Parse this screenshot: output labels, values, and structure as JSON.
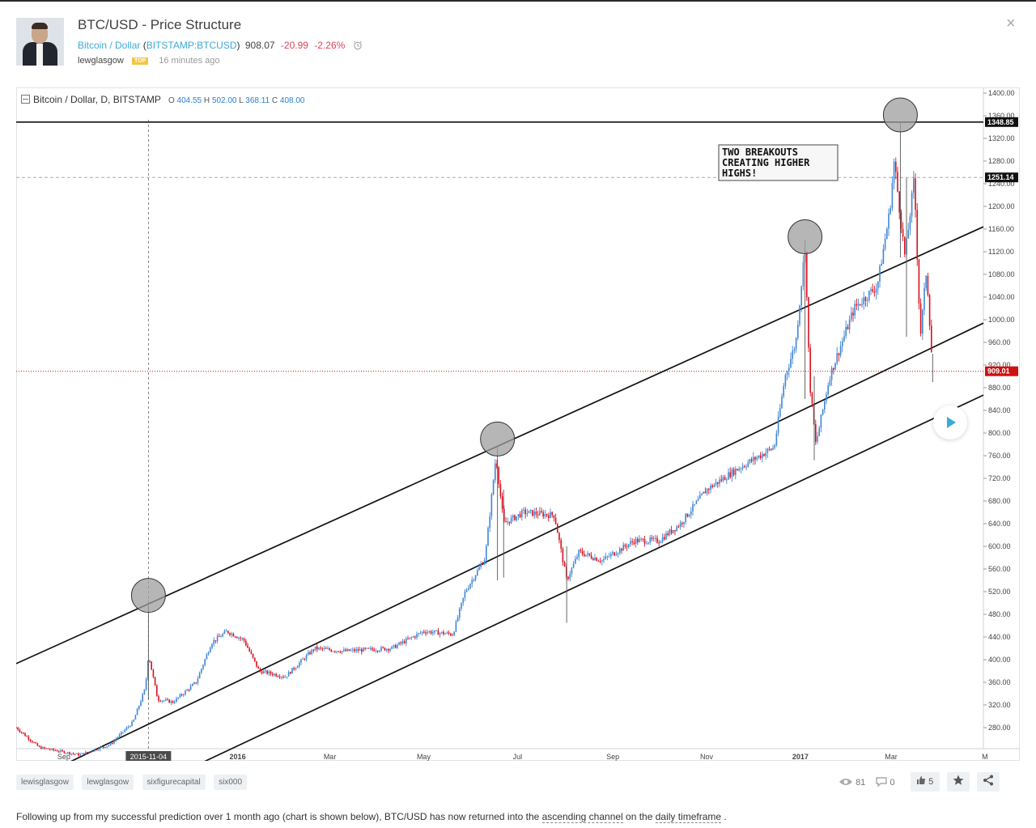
{
  "header": {
    "title": "BTC/USD - Price Structure",
    "symbol_name": "Bitcoin / Dollar",
    "symbol_code": "BITSTAMP:BTCUSD",
    "price": "908.07",
    "change": "-20.99",
    "change_pct": "-2.26%",
    "author": "lewglasgow",
    "badge": "TOP",
    "time_ago": "16 minutes ago"
  },
  "chart_header": {
    "title": "Bitcoin / Dollar, D, BITSTAMP",
    "o_label": "O",
    "o": "404.55",
    "h_label": "H",
    "h": "502.00",
    "l_label": "L",
    "l": "368.11",
    "c_label": "C",
    "c": "408.00"
  },
  "chart_data": {
    "type": "candlestick",
    "title": "Bitcoin / Dollar, D, BITSTAMP",
    "x_tick_labels": [
      "Sep",
      "2015-11-04",
      "2016",
      "Mar",
      "May",
      "Jul",
      "Sep",
      "Nov",
      "2017",
      "Mar",
      "M"
    ],
    "y_tick_labels": [
      "1400.00",
      "1360.00",
      "1320.00",
      "1280.00",
      "1240.00",
      "1200.00",
      "1160.00",
      "1120.00",
      "1080.00",
      "1040.00",
      "1000.00",
      "960.00",
      "920.00",
      "880.00",
      "840.00",
      "800.00",
      "760.00",
      "720.00",
      "680.00",
      "640.00",
      "600.00",
      "560.00",
      "520.00",
      "480.00",
      "440.00",
      "400.00",
      "360.00",
      "320.00",
      "280.00"
    ],
    "ylim": [
      240,
      1420
    ],
    "price_path": [
      [
        "2015-08-10",
        280
      ],
      [
        "2015-08-25",
        245
      ],
      [
        "2015-09-20",
        232
      ],
      [
        "2015-10-10",
        250
      ],
      [
        "2015-10-25",
        290
      ],
      [
        "2015-11-02",
        350
      ],
      [
        "2015-11-04",
        410
      ],
      [
        "2015-11-10",
        330
      ],
      [
        "2015-11-20",
        325
      ],
      [
        "2015-12-05",
        360
      ],
      [
        "2015-12-15",
        430
      ],
      [
        "2015-12-25",
        450
      ],
      [
        "2016-01-05",
        435
      ],
      [
        "2016-01-15",
        380
      ],
      [
        "2016-02-01",
        370
      ],
      [
        "2016-02-20",
        420
      ],
      [
        "2016-03-10",
        415
      ],
      [
        "2016-04-10",
        420
      ],
      [
        "2016-05-01",
        450
      ],
      [
        "2016-05-20",
        445
      ],
      [
        "2016-05-28",
        520
      ],
      [
        "2016-06-10",
        580
      ],
      [
        "2016-06-17",
        760
      ],
      [
        "2016-06-22",
        640
      ],
      [
        "2016-07-05",
        660
      ],
      [
        "2016-07-25",
        655
      ],
      [
        "2016-08-02",
        540
      ],
      [
        "2016-08-10",
        590
      ],
      [
        "2016-08-25",
        575
      ],
      [
        "2016-09-15",
        610
      ],
      [
        "2016-10-01",
        610
      ],
      [
        "2016-10-15",
        640
      ],
      [
        "2016-11-01",
        700
      ],
      [
        "2016-11-20",
        735
      ],
      [
        "2016-12-15",
        775
      ],
      [
        "2016-12-22",
        900
      ],
      [
        "2016-12-29",
        960
      ],
      [
        "2017-01-04",
        1130
      ],
      [
        "2017-01-07",
        890
      ],
      [
        "2017-01-11",
        780
      ],
      [
        "2017-01-20",
        900
      ],
      [
        "2017-02-05",
        1020
      ],
      [
        "2017-02-20",
        1060
      ],
      [
        "2017-02-28",
        1190
      ],
      [
        "2017-03-03",
        1280
      ],
      [
        "2017-03-10",
        1110
      ],
      [
        "2017-03-16",
        1250
      ],
      [
        "2017-03-20",
        970
      ],
      [
        "2017-03-24",
        1090
      ],
      [
        "2017-03-28",
        909
      ]
    ],
    "horizontal_levels": [
      {
        "label": "1348.85",
        "value": 1348.85,
        "style": "solid"
      },
      {
        "label": "1251.14",
        "value": 1251.14,
        "style": "dashed"
      },
      {
        "label": "909.01",
        "value": 909.01,
        "style": "dotted"
      }
    ],
    "channel_lines": [
      {
        "start": [
          "2015-08-10",
          393
        ],
        "end": [
          "2017-04-30",
          1164
        ]
      },
      {
        "start": [
          "2015-08-10",
          174
        ],
        "end": [
          "2017-04-30",
          994
        ]
      },
      {
        "start": [
          "2015-08-10",
          64
        ],
        "end": [
          "2017-04-30",
          867
        ]
      }
    ],
    "highlighted_highs": [
      {
        "date": "2015-11-04",
        "value": 502
      },
      {
        "date": "2016-06-18",
        "value": 778
      },
      {
        "date": "2017-01-04",
        "value": 1135
      },
      {
        "date": "2017-03-07",
        "value": 1350
      }
    ],
    "annotation": "TWO BREAKOUTS CREATING HIGHER HIGHS!",
    "crosshair_date": "2015-11-04",
    "colors": {
      "up": "#3f86d6",
      "down": "#d9101e",
      "line": "#111111",
      "level_last": "#cc1111"
    }
  },
  "tags": [
    "lewisglasgow",
    "lewglasgow",
    "sixfigurecapital",
    "six000"
  ],
  "stats": {
    "views": "81",
    "comments": "0",
    "likes": "5"
  },
  "description": {
    "part1": "Following up from my successful prediction over 1 month ago (chart is shown below), BTC/USD has now returned into the ",
    "link1": "ascending channel",
    "part2": " on the ",
    "link2": "daily timeframe",
    "part3": " ."
  }
}
